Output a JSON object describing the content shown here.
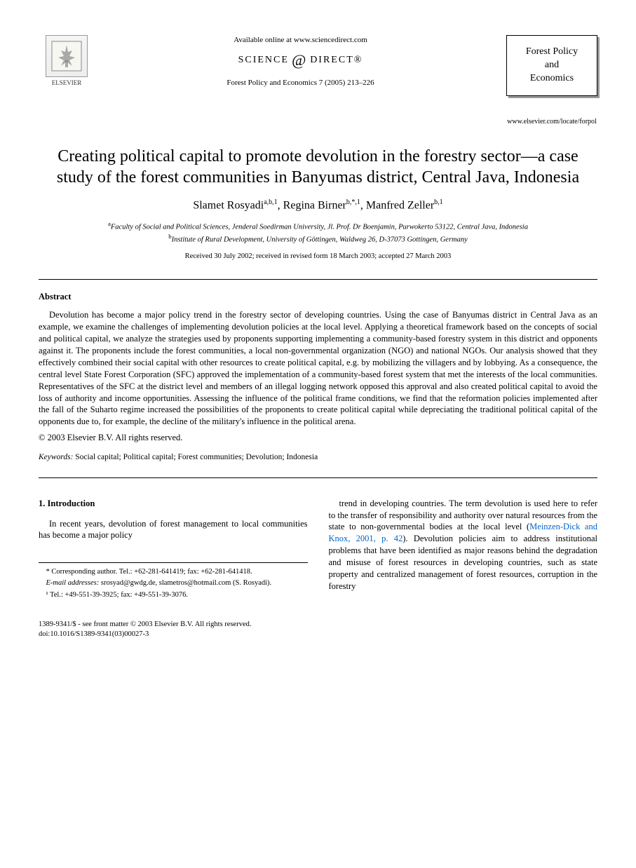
{
  "header": {
    "publisher_name": "ELSEVIER",
    "available_text": "Available online at www.sciencedirect.com",
    "sd_prefix": "SCIENCE",
    "sd_suffix": "DIRECT®",
    "journal_ref": "Forest Policy and Economics 7 (2005) 213–226",
    "journal_box_line1": "Forest Policy",
    "journal_box_line2": "and",
    "journal_box_line3": "Economics",
    "journal_url": "www.elsevier.com/locate/forpol"
  },
  "article": {
    "title": "Creating political capital to promote devolution in the forestry sector—a case study of the forest communities in Banyumas district, Central Java, Indonesia",
    "authors_html": "Slamet Rosyadi<sup>a,b,1</sup>, Regina Birner<sup>b,*,1</sup>, Manfred Zeller<sup>b,1</sup>",
    "affiliations": {
      "a": "Faculty of Social and Political Sciences, Jenderal Soedirman University, Jl. Prof. Dr Boenjamin, Purwokerto 53122, Central Java, Indonesia",
      "b": "Institute of Rural Development, University of Göttingen, Waldweg 26, D-37073 Gottingen, Germany"
    },
    "received": "Received 30 July 2002; received in revised form 18 March 2003; accepted 27 March 2003"
  },
  "abstract": {
    "heading": "Abstract",
    "body": "Devolution has become a major policy trend in the forestry sector of developing countries. Using the case of Banyumas district in Central Java as an example, we examine the challenges of implementing devolution policies at the local level. Applying a theoretical framework based on the concepts of social and political capital, we analyze the strategies used by proponents supporting implementing a community-based forestry system in this district and opponents against it. The proponents include the forest communities, a local non-governmental organization (NGO) and national NGOs. Our analysis showed that they effectively combined their social capital with other resources to create political capital, e.g. by mobilizing the villagers and by lobbying. As a consequence, the central level State Forest Corporation (SFC) approved the implementation of a community-based forest system that met the interests of the local communities. Representatives of the SFC at the district level and members of an illegal logging network opposed this approval and also created political capital to avoid the loss of authority and income opportunities. Assessing the influence of the political frame conditions, we find that the reformation policies implemented after the fall of the Suharto regime increased the possibilities of the proponents to create political capital while depreciating the traditional political capital of the opponents due to, for example, the decline of the military's influence in the political arena.",
    "copyright": "© 2003 Elsevier B.V. All rights reserved."
  },
  "keywords": {
    "label": "Keywords:",
    "list": "Social capital; Political capital; Forest communities; Devolution; Indonesia"
  },
  "intro": {
    "heading": "1. Introduction",
    "col1": "In recent years, devolution of forest management to local communities has become a major policy",
    "col2_pre": "trend in developing countries. The term devolution is used here to refer to the transfer of responsibility and authority over natural resources from the state to non-governmental bodies at the local level (",
    "col2_cite": "Meinzen-Dick and Knox, 2001, p. 42",
    "col2_post": "). Devolution policies aim to address institutional problems that have been identified as major reasons behind the degradation and misuse of forest resources in developing countries, such as state property and centralized management of forest resources, corruption in the forestry"
  },
  "footnotes": {
    "corresponding": "* Corresponding author. Tel.: +62-281-641419; fax: +62-281-641418.",
    "email_label": "E-mail addresses:",
    "emails": "srosyad@gwdg.de, slametros@hotmail.com (S. Rosyadi).",
    "note1": "¹ Tel.: +49-551-39-3925; fax: +49-551-39-3076."
  },
  "bottom": {
    "front_matter": "1389-9341/$ - see front matter © 2003 Elsevier B.V. All rights reserved.",
    "doi": "doi:10.1016/S1389-9341(03)00027-3"
  }
}
